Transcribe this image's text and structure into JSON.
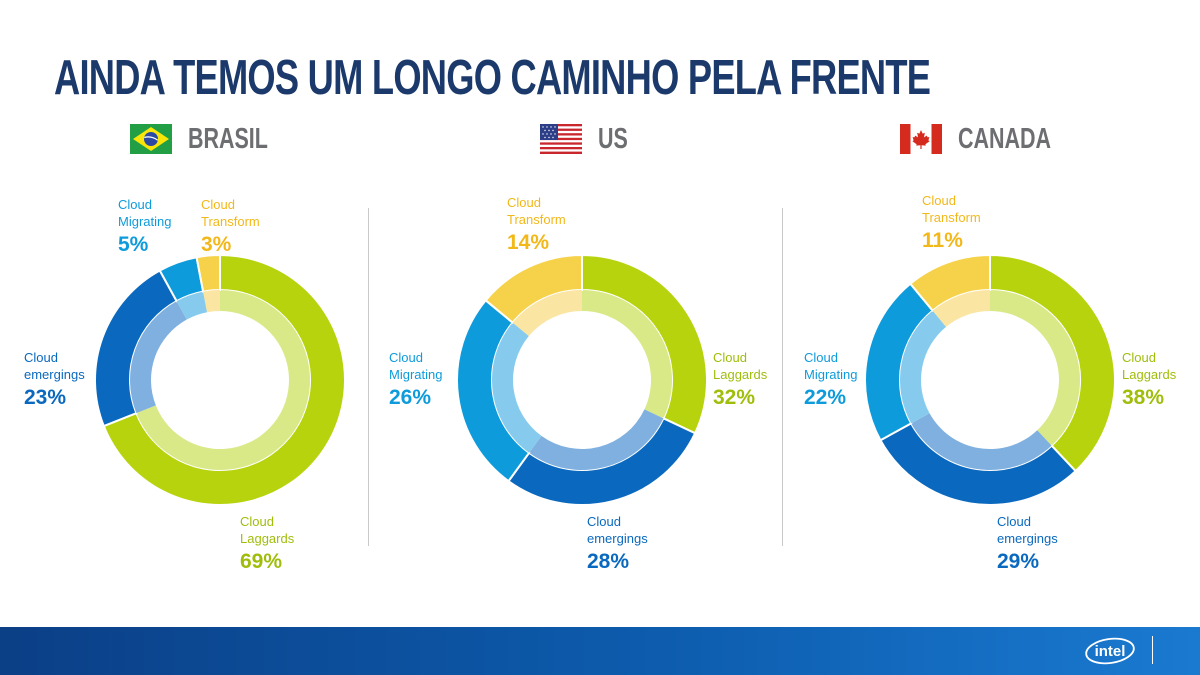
{
  "page": {
    "title": "AINDA TEMOS UM LONGO CAMINHO PELA FRENTE"
  },
  "colors": {
    "laggards": "#b7d30e",
    "laggards_inner": "#dae988",
    "emergings": "#0a69be",
    "emergings_inner": "#7fb0df",
    "migrating": "#0e9bdb",
    "migrating_inner": "#86cbee",
    "transform": "#f6d24a",
    "transform_inner": "#fae5a3",
    "title": "#1b3a6b",
    "country": "#6d6e71"
  },
  "countries": [
    {
      "name": "BRASIL",
      "flag_icon": "brazil-flag-icon"
    },
    {
      "name": "US",
      "flag_icon": "us-flag-icon"
    },
    {
      "name": "CANADA",
      "flag_icon": "canada-flag-icon"
    }
  ],
  "chart_data": [
    {
      "type": "pie",
      "title": "BRASIL",
      "slices": [
        {
          "label": "Cloud Laggards",
          "value": 69,
          "value_label": "69%"
        },
        {
          "label": "Cloud emergings",
          "value": 23,
          "value_label": "23%"
        },
        {
          "label": "Cloud Migrating",
          "value": 5,
          "value_label": "5%"
        },
        {
          "label": "Cloud Transform",
          "value": 3,
          "value_label": "3%"
        }
      ]
    },
    {
      "type": "pie",
      "title": "US",
      "slices": [
        {
          "label": "Cloud Laggards",
          "value": 32,
          "value_label": "32%"
        },
        {
          "label": "Cloud emergings",
          "value": 28,
          "value_label": "28%"
        },
        {
          "label": "Cloud Migrating",
          "value": 26,
          "value_label": "26%"
        },
        {
          "label": "Cloud Transform",
          "value": 14,
          "value_label": "14%"
        }
      ]
    },
    {
      "type": "pie",
      "title": "CANADA",
      "slices": [
        {
          "label": "Cloud Laggards",
          "value": 38,
          "value_label": "38%"
        },
        {
          "label": "Cloud emergings",
          "value": 29,
          "value_label": "29%"
        },
        {
          "label": "Cloud Migrating",
          "value": 22,
          "value_label": "22%"
        },
        {
          "label": "Cloud Transform",
          "value": 11,
          "value_label": "11%"
        }
      ]
    }
  ],
  "labels": {
    "brasil": {
      "laggards": {
        "line1": "Cloud",
        "line2": "Laggards",
        "pct": "69%"
      },
      "emergings": {
        "line1": "Cloud",
        "line2": "emergings",
        "pct": "23%"
      },
      "migrating": {
        "line1": "Cloud",
        "line2": "Migrating",
        "pct": "5%"
      },
      "transform": {
        "line1": "Cloud",
        "line2": "Transform",
        "pct": "3%"
      }
    },
    "us": {
      "laggards": {
        "line1": "Cloud",
        "line2": "Laggards",
        "pct": "32%"
      },
      "emergings": {
        "line1": "Cloud",
        "line2": "emergings",
        "pct": "28%"
      },
      "migrating": {
        "line1": "Cloud",
        "line2": "Migrating",
        "pct": "26%"
      },
      "transform": {
        "line1": "Cloud",
        "line2": "Transform",
        "pct": "14%"
      }
    },
    "canada": {
      "laggards": {
        "line1": "Cloud",
        "line2": "Laggards",
        "pct": "38%"
      },
      "emergings": {
        "line1": "Cloud",
        "line2": "emergings",
        "pct": "29%"
      },
      "migrating": {
        "line1": "Cloud",
        "line2": "Migrating",
        "pct": "22%"
      },
      "transform": {
        "line1": "Cloud",
        "line2": "Transform",
        "pct": "11%"
      }
    }
  },
  "footer": {
    "logo_text": "intel",
    "logo_icon": "intel-logo-icon"
  }
}
